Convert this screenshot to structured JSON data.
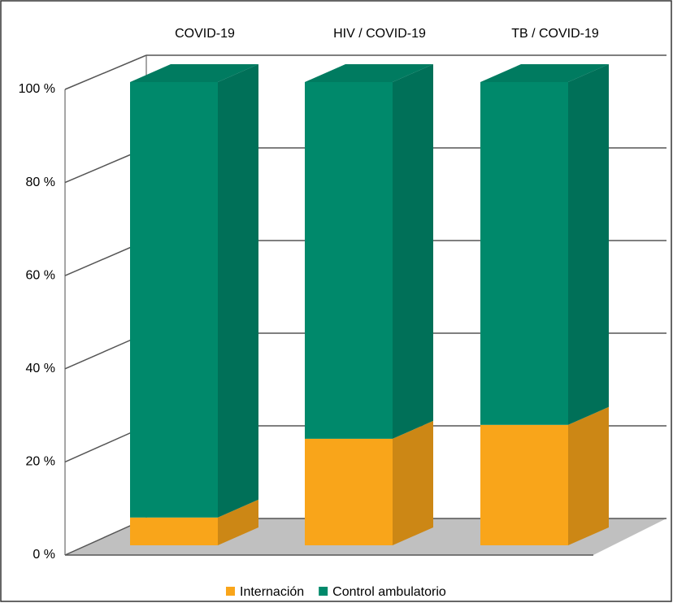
{
  "chart_data": {
    "type": "bar3d_stacked",
    "categories": [
      "COVID-19",
      "HIV / COVID-19",
      "TB / COVID-19"
    ],
    "series": [
      {
        "name": "Internación",
        "color": "#f9a51a",
        "values": [
          6,
          23,
          26
        ]
      },
      {
        "name": "Control ambulatorio",
        "color": "#00896b",
        "values": [
          94,
          77,
          74
        ]
      }
    ],
    "ylim": [
      0,
      100
    ],
    "yticks": [
      {
        "value": 0,
        "label": "0 %"
      },
      {
        "value": 20,
        "label": "20 %"
      },
      {
        "value": 40,
        "label": "40 %"
      },
      {
        "value": 60,
        "label": "60 %"
      },
      {
        "value": 80,
        "label": "80 %"
      },
      {
        "value": 100,
        "label": "100 %"
      }
    ],
    "grid": true,
    "legend": "bottom"
  }
}
